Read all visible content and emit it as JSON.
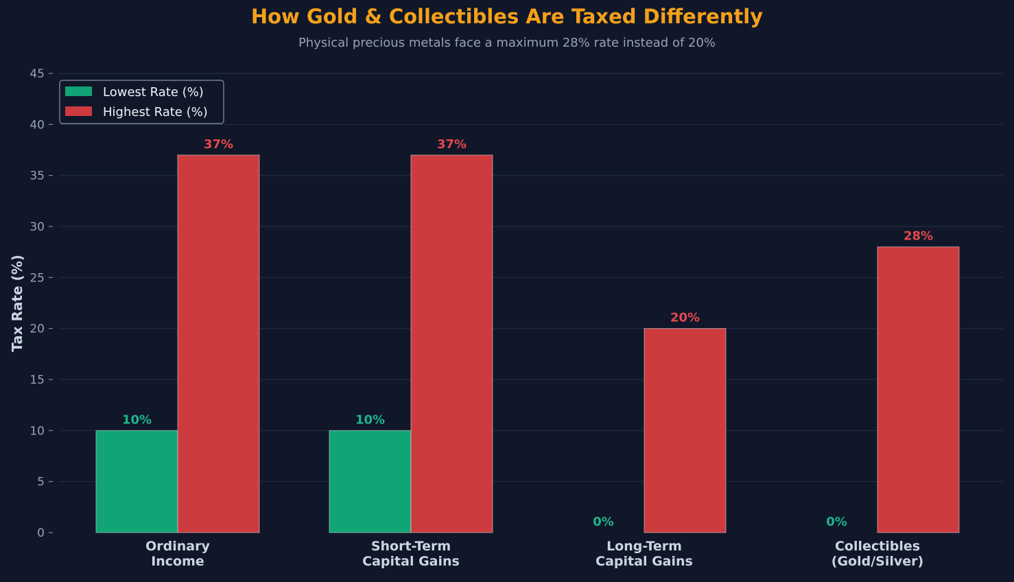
{
  "chart_data": {
    "type": "bar",
    "title": "How Gold & Collectibles Are Taxed Differently",
    "subtitle": "Physical precious metals face a maximum 28% rate instead of 20%",
    "ylabel": "Tax Rate (%)",
    "xlabel": "",
    "ylim": [
      0,
      45
    ],
    "yticks": [
      0,
      5,
      10,
      15,
      20,
      25,
      30,
      35,
      40,
      45
    ],
    "grid": "horizontal",
    "legend_position": "top-left",
    "categories": [
      [
        "Ordinary",
        "Income"
      ],
      [
        "Short-Term",
        "Capital Gains"
      ],
      [
        "Long-Term",
        "Capital Gains"
      ],
      [
        "Collectibles",
        "(Gold/Silver)"
      ]
    ],
    "series": [
      {
        "name": "Lowest Rate (%)",
        "color": "#10a476",
        "label_color": "#1fb58a",
        "values": [
          10,
          10,
          0,
          0
        ],
        "labels": [
          "10%",
          "10%",
          "0%",
          "0%"
        ]
      },
      {
        "name": "Highest Rate (%)",
        "color": "#cd3b3f",
        "label_color": "#e5484d",
        "values": [
          37,
          37,
          20,
          28
        ],
        "labels": [
          "37%",
          "37%",
          "20%",
          "28%"
        ]
      }
    ],
    "colors": {
      "background": "#0f1729",
      "title": "#f5a01a",
      "subtitle": "#9aa3b2",
      "axis_label": "#cbd5e1",
      "tick_label": "#9aa3b2",
      "category_label": "#cbd5e1",
      "grid": "#263043",
      "legend_text": "#f1f5f9",
      "legend_border": "#8a94a6"
    }
  }
}
